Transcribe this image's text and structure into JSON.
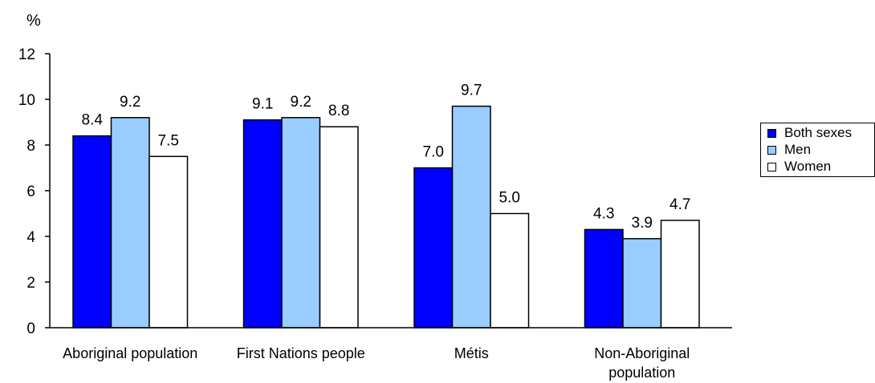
{
  "chart_data": {
    "type": "bar",
    "ylabel": "%",
    "ylim": [
      0,
      12
    ],
    "yticks": [
      "0",
      "2",
      "4",
      "6",
      "8",
      "10",
      "12"
    ],
    "categories": [
      [
        "Aboriginal population"
      ],
      [
        "First Nations people"
      ],
      [
        "Métis"
      ],
      [
        "Non-Aboriginal",
        "population"
      ]
    ],
    "series": [
      {
        "name": "Both sexes",
        "color": "#0000ff",
        "values": [
          8.4,
          9.1,
          7.0,
          4.3
        ],
        "labels": [
          "8.4",
          "9.1",
          "7.0",
          "4.3"
        ]
      },
      {
        "name": "Men",
        "color": "#99ccff",
        "values": [
          9.2,
          9.2,
          9.7,
          3.9
        ],
        "labels": [
          "9.2",
          "9.2",
          "9.7",
          "3.9"
        ]
      },
      {
        "name": "Women",
        "color": "#ffffff",
        "values": [
          7.5,
          8.8,
          5.0,
          4.7
        ],
        "labels": [
          "7.5",
          "8.8",
          "5.0",
          "4.7"
        ]
      }
    ],
    "grid": false,
    "legend_position": "right"
  }
}
